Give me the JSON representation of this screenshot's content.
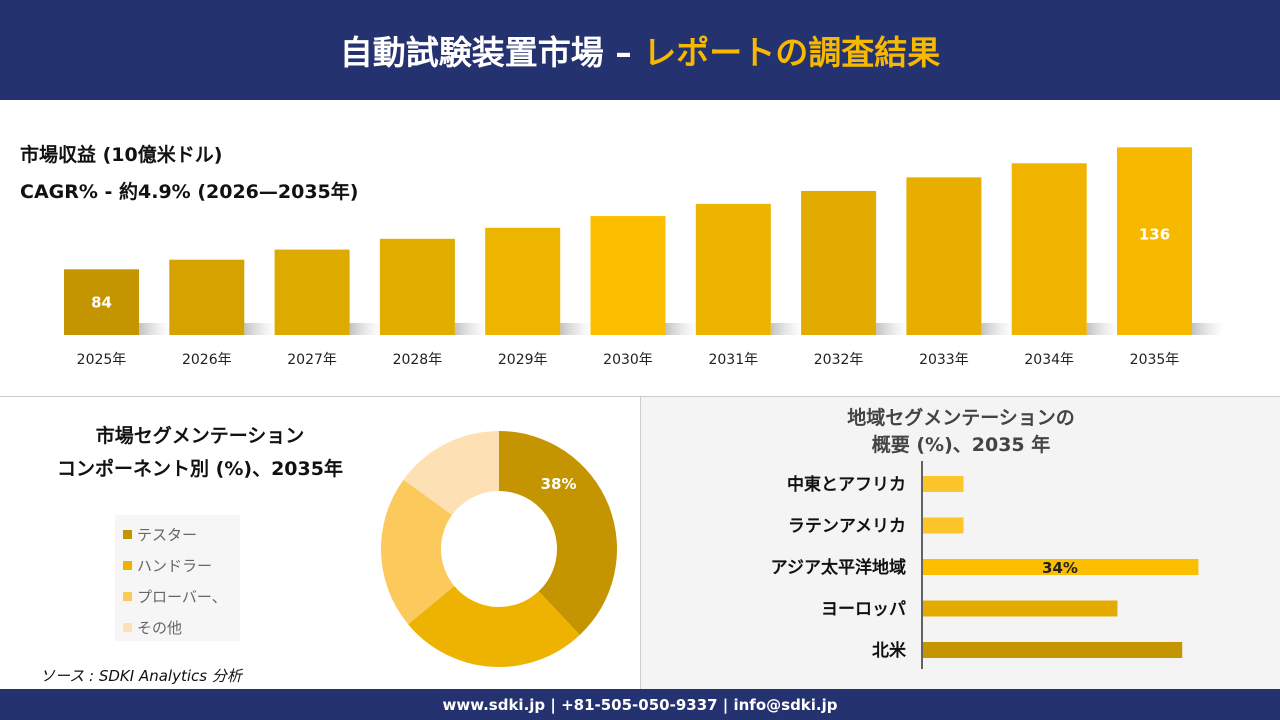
{
  "header": {
    "title_main": "自動試験装置市場 –",
    "title_accent": "レポートの調査結果"
  },
  "colors": {
    "navy": "#253270",
    "gold": "#f7b900"
  },
  "chart_data": [
    {
      "type": "bar",
      "title": "市場収益 (10億米ドル)",
      "subtitle": "CAGR% - 約4.9% (2026—2035年)",
      "categories": [
        "2025年",
        "2026年",
        "2027年",
        "2028年",
        "2029年",
        "2030年",
        "2031年",
        "2032年",
        "2033年",
        "2034年",
        "2035年"
      ],
      "values": [
        84,
        88.1,
        92.4,
        97.0,
        101.7,
        106.7,
        111.9,
        117.4,
        123.2,
        129.2,
        136
      ],
      "data_labels": {
        "0": "84",
        "10": "136"
      },
      "colors": [
        "#c49500",
        "#d6a200",
        "#ddaa00",
        "#e3ad00",
        "#eeb500",
        "#fbbf00",
        "#ecb300",
        "#e3ab00",
        "#e7ae00",
        "#f0b300",
        "#f7b900"
      ]
    },
    {
      "type": "pie",
      "variant": "donut",
      "title": "市場セグメンテーション コンポーネント別 (%)、2035年",
      "title_lines": [
        "市場セグメンテーション",
        "コンポーネント別 (%)、2035年"
      ],
      "categories": [
        "テスター",
        "ハンドラー",
        "プローバー、",
        "その他"
      ],
      "values": [
        38,
        26,
        21,
        15
      ],
      "data_labels": {
        "0": "38%"
      },
      "colors": [
        "#c49500",
        "#eeb200",
        "#fcc95d",
        "#fde0b3"
      ],
      "legend": "left"
    },
    {
      "type": "bar",
      "orientation": "horizontal",
      "title_lines": [
        "地域セグメンテーションの",
        "概要 (%)、2035 年"
      ],
      "categories": [
        "中東とアフリカ",
        "ラテンアメリカ",
        "アジア太平洋地域",
        "ヨーロッパ",
        "北米"
      ],
      "values": [
        5,
        5,
        34,
        24,
        32
      ],
      "data_labels": {
        "2": "34%"
      },
      "colors": [
        "#fcc52a",
        "#fcc52a",
        "#fbbf00",
        "#e3ab00",
        "#c49500"
      ]
    }
  ],
  "source": "ソース : SDKI Analytics 分析",
  "footer": "www.sdki.jp | +81-505-050-9337 | info@sdki.jp"
}
